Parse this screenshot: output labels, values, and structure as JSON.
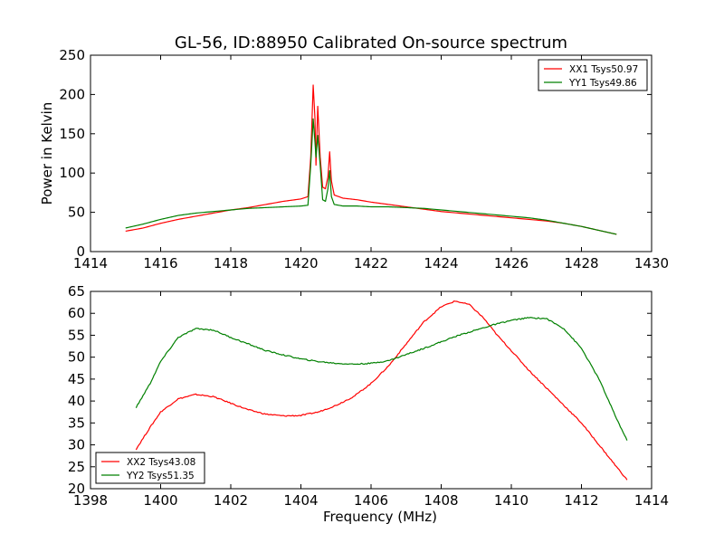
{
  "title": "GL-56, ID:88950 Calibrated On-source spectrum",
  "colors": {
    "xx": "#ff0000",
    "yy": "#008000",
    "axes": "#000000"
  },
  "chart_data": [
    {
      "type": "line",
      "ylabel": "Power in Kelvin",
      "xlabel": "",
      "xlim": [
        1414,
        1430
      ],
      "ylim": [
        0,
        250
      ],
      "xticks": [
        "1414",
        "1416",
        "1418",
        "1420",
        "1422",
        "1424",
        "1426",
        "1428",
        "1430"
      ],
      "yticks": [
        "0",
        "50",
        "100",
        "150",
        "200",
        "250"
      ],
      "legend_position": "top-right",
      "series": [
        {
          "name": "XX1 Tsys50.97",
          "color": "#ff0000",
          "points": [
            [
              1415.0,
              26
            ],
            [
              1415.5,
              30
            ],
            [
              1416.0,
              36
            ],
            [
              1416.5,
              41
            ],
            [
              1417.0,
              45
            ],
            [
              1417.5,
              49
            ],
            [
              1418.0,
              53
            ],
            [
              1418.5,
              56
            ],
            [
              1419.0,
              60
            ],
            [
              1419.5,
              64
            ],
            [
              1420.0,
              67
            ],
            [
              1420.2,
              70
            ],
            [
              1420.28,
              120
            ],
            [
              1420.35,
              212
            ],
            [
              1420.4,
              170
            ],
            [
              1420.43,
              110
            ],
            [
              1420.48,
              185
            ],
            [
              1420.55,
              120
            ],
            [
              1420.62,
              82
            ],
            [
              1420.7,
              80
            ],
            [
              1420.77,
              95
            ],
            [
              1420.82,
              127
            ],
            [
              1420.87,
              90
            ],
            [
              1420.95,
              72
            ],
            [
              1421.2,
              68
            ],
            [
              1421.6,
              66
            ],
            [
              1422.0,
              63
            ],
            [
              1422.5,
              60
            ],
            [
              1423.0,
              57
            ],
            [
              1423.5,
              54
            ],
            [
              1424.0,
              51
            ],
            [
              1424.5,
              49
            ],
            [
              1425.0,
              47
            ],
            [
              1425.5,
              45
            ],
            [
              1426.0,
              43
            ],
            [
              1426.5,
              41
            ],
            [
              1427.0,
              39
            ],
            [
              1427.5,
              36
            ],
            [
              1428.0,
              32
            ],
            [
              1428.5,
              27
            ],
            [
              1429.0,
              22
            ]
          ]
        },
        {
          "name": "YY1 Tsys49.86",
          "color": "#008000",
          "points": [
            [
              1415.0,
              30
            ],
            [
              1415.5,
              35
            ],
            [
              1416.0,
              41
            ],
            [
              1416.5,
              46
            ],
            [
              1417.0,
              49
            ],
            [
              1417.5,
              51
            ],
            [
              1418.0,
              53
            ],
            [
              1418.5,
              55
            ],
            [
              1419.0,
              56
            ],
            [
              1419.5,
              57
            ],
            [
              1420.0,
              58
            ],
            [
              1420.2,
              59
            ],
            [
              1420.28,
              110
            ],
            [
              1420.35,
              169
            ],
            [
              1420.4,
              140
            ],
            [
              1420.43,
              120
            ],
            [
              1420.48,
              148
            ],
            [
              1420.55,
              110
            ],
            [
              1420.62,
              66
            ],
            [
              1420.7,
              64
            ],
            [
              1420.77,
              80
            ],
            [
              1420.82,
              103
            ],
            [
              1420.87,
              70
            ],
            [
              1420.95,
              60
            ],
            [
              1421.2,
              58
            ],
            [
              1421.6,
              58
            ],
            [
              1422.0,
              57
            ],
            [
              1422.5,
              57
            ],
            [
              1423.0,
              56
            ],
            [
              1423.5,
              55
            ],
            [
              1424.0,
              53
            ],
            [
              1424.5,
              51
            ],
            [
              1425.0,
              49
            ],
            [
              1425.5,
              47
            ],
            [
              1426.0,
              45
            ],
            [
              1426.5,
              43
            ],
            [
              1427.0,
              40
            ],
            [
              1427.5,
              36
            ],
            [
              1428.0,
              32
            ],
            [
              1428.5,
              27
            ],
            [
              1429.0,
              22
            ]
          ]
        }
      ]
    },
    {
      "type": "line",
      "xlabel": "Frequency (MHz)",
      "ylabel": "",
      "xlim": [
        1398,
        1414
      ],
      "ylim": [
        20,
        65
      ],
      "xticks": [
        "1398",
        "1400",
        "1402",
        "1404",
        "1406",
        "1408",
        "1410",
        "1412",
        "1414"
      ],
      "yticks": [
        "20",
        "25",
        "30",
        "35",
        "40",
        "45",
        "50",
        "55",
        "60",
        "65"
      ],
      "legend_position": "bottom-left",
      "series": [
        {
          "name": "XX2 Tsys43.08",
          "color": "#ff0000",
          "points": [
            [
              1399.3,
              29
            ],
            [
              1399.7,
              34
            ],
            [
              1400.0,
              37.5
            ],
            [
              1400.5,
              40.5
            ],
            [
              1401.0,
              41.5
            ],
            [
              1401.5,
              41
            ],
            [
              1402.0,
              39.5
            ],
            [
              1402.5,
              38
            ],
            [
              1403.0,
              37
            ],
            [
              1403.5,
              36.6
            ],
            [
              1404.0,
              36.7
            ],
            [
              1404.5,
              37.5
            ],
            [
              1405.0,
              39
            ],
            [
              1405.5,
              41
            ],
            [
              1406.0,
              44
            ],
            [
              1406.5,
              48
            ],
            [
              1407.0,
              53
            ],
            [
              1407.5,
              58
            ],
            [
              1408.0,
              61.5
            ],
            [
              1408.4,
              62.8
            ],
            [
              1408.8,
              62
            ],
            [
              1409.2,
              59
            ],
            [
              1409.6,
              55
            ],
            [
              1410.0,
              51.5
            ],
            [
              1410.5,
              47
            ],
            [
              1411.0,
              43
            ],
            [
              1411.5,
              39
            ],
            [
              1412.0,
              35
            ],
            [
              1412.5,
              30
            ],
            [
              1413.0,
              25
            ],
            [
              1413.3,
              22
            ]
          ]
        },
        {
          "name": "YY2 Tsys51.35",
          "color": "#008000",
          "points": [
            [
              1399.3,
              38.5
            ],
            [
              1399.7,
              44
            ],
            [
              1400.0,
              49
            ],
            [
              1400.5,
              54.5
            ],
            [
              1401.0,
              56.5
            ],
            [
              1401.5,
              56.2
            ],
            [
              1402.0,
              54.5
            ],
            [
              1402.5,
              53
            ],
            [
              1403.0,
              51.5
            ],
            [
              1403.5,
              50.5
            ],
            [
              1404.0,
              49.6
            ],
            [
              1404.5,
              49
            ],
            [
              1405.0,
              48.6
            ],
            [
              1405.5,
              48.4
            ],
            [
              1406.0,
              48.6
            ],
            [
              1406.5,
              49.2
            ],
            [
              1407.0,
              50.6
            ],
            [
              1407.5,
              52
            ],
            [
              1408.0,
              53.5
            ],
            [
              1408.5,
              55
            ],
            [
              1409.0,
              56.2
            ],
            [
              1409.5,
              57.4
            ],
            [
              1410.0,
              58.4
            ],
            [
              1410.5,
              59
            ],
            [
              1411.0,
              58.8
            ],
            [
              1411.5,
              56.5
            ],
            [
              1412.0,
              52
            ],
            [
              1412.5,
              45
            ],
            [
              1413.0,
              36
            ],
            [
              1413.3,
              31
            ]
          ]
        }
      ]
    }
  ]
}
